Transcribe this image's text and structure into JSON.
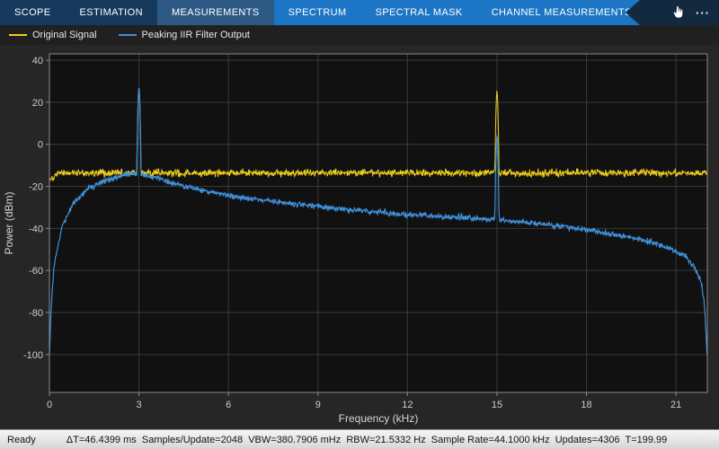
{
  "toolbar": {
    "tabs_left": [
      {
        "label": "SCOPE",
        "active": false
      },
      {
        "label": "ESTIMATION",
        "active": false
      },
      {
        "label": "MEASUREMENTS",
        "active": true
      }
    ],
    "tabs_right": [
      {
        "label": "SPECTRUM",
        "active": false
      },
      {
        "label": "SPECTRAL MASK",
        "active": false
      },
      {
        "label": "CHANNEL MEASUREMENTS",
        "active": false
      }
    ],
    "overflow_label": "···",
    "icons": {
      "pointer_tool": "hand-pointer-icon",
      "overflow": "ellipsis-icon"
    }
  },
  "legend": {
    "items": [
      {
        "label": "Original Signal",
        "color": "#f0cd1c"
      },
      {
        "label": "Peaking IIR Filter Output",
        "color": "#3f90d8"
      }
    ]
  },
  "status_bar": {
    "state": "Ready",
    "metrics": "ΔT=46.4399 ms  Samples/Update=2048  VBW=380.7906 mHz  RBW=21.5332 Hz  Sample Rate=44.1000 kHz  Updates=4306  T=199.99"
  },
  "colors": {
    "toolbar_left_bg": "#17395d",
    "toolbar_active_bg": "#2d5a85",
    "toolbar_right_bg": "#1d76c5",
    "notch_bg": "#132940",
    "tab_text": "#ffffff",
    "legend_bg": "#202020",
    "legend_text": "#e8e8e8",
    "figure_bg": "#262626",
    "status_bg": "#e4e4e4",
    "status_text": "#141414"
  },
  "chart_data": {
    "type": "line",
    "title": "",
    "xlabel": "Frequency (kHz)",
    "ylabel": "Power (dBm)",
    "xlim": [
      0,
      22.05
    ],
    "ylim": [
      -118,
      43
    ],
    "xticks": [
      0,
      3,
      6,
      9,
      12,
      15,
      18,
      21
    ],
    "yticks": [
      40,
      20,
      0,
      -20,
      -40,
      -60,
      -80,
      -100
    ],
    "grid": true,
    "legend_position": "top-left",
    "colors": {
      "axes_bg": "#111111",
      "grid": "#3a3a3a",
      "axis_line": "#8c8c8c",
      "tick_text": "#cccccc",
      "label_text": "#d6d6d6"
    },
    "series": [
      {
        "name": "Original Signal",
        "color": "#f0cd1c",
        "type_hint": "flat noise floor",
        "noise_db": 1.7,
        "envelope_dbm": [
          [
            0,
            -16.5
          ],
          [
            0.3,
            -13.6
          ],
          [
            22.05,
            -13.6
          ]
        ],
        "peaks": [
          {
            "f_khz": 3.0,
            "power_dbm": 26.8
          },
          {
            "f_khz": 15.0,
            "power_dbm": 25.4
          }
        ]
      },
      {
        "name": "Peaking IIR Filter Output",
        "color": "#3f90d8",
        "type_hint": "bandpass-shaped noise, peak near 3 kHz, roll-off toward Nyquist",
        "noise_db": 1.3,
        "envelope_dbm": [
          [
            0,
            -101
          ],
          [
            0.05,
            -80
          ],
          [
            0.15,
            -58
          ],
          [
            0.4,
            -40
          ],
          [
            0.8,
            -28
          ],
          [
            1.3,
            -21
          ],
          [
            2,
            -16.5
          ],
          [
            2.6,
            -14.5
          ],
          [
            3,
            -14
          ],
          [
            3.6,
            -16
          ],
          [
            4.5,
            -20
          ],
          [
            6,
            -24.5
          ],
          [
            8,
            -28
          ],
          [
            10,
            -31
          ],
          [
            12,
            -33.5
          ],
          [
            14,
            -35
          ],
          [
            16,
            -37
          ],
          [
            18,
            -40.5
          ],
          [
            19,
            -43
          ],
          [
            20,
            -46
          ],
          [
            20.8,
            -49.5
          ],
          [
            21.3,
            -53
          ],
          [
            21.6,
            -58
          ],
          [
            21.85,
            -66
          ],
          [
            21.95,
            -76
          ],
          [
            22,
            -88
          ],
          [
            22.05,
            -102
          ]
        ],
        "peaks": [
          {
            "f_khz": 3.0,
            "power_dbm": 26.8
          },
          {
            "f_khz": 15.0,
            "power_dbm": 4.0
          }
        ]
      }
    ]
  }
}
